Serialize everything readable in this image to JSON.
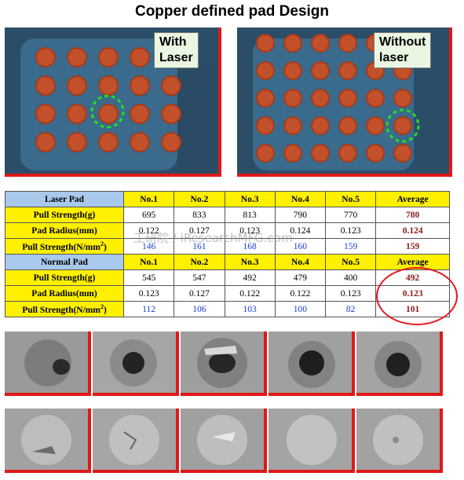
{
  "title": "Copper defined pad Design",
  "photos": {
    "left_callout": [
      "With",
      "Laser"
    ],
    "right_callout": [
      "Without",
      "laser"
    ]
  },
  "laser_table": {
    "header": [
      "Laser Pad",
      "No.1",
      "No.2",
      "No.3",
      "No.4",
      "No.5",
      "Average"
    ],
    "rows": [
      {
        "label": "Pull Strength(g)",
        "values": [
          "695",
          "833",
          "813",
          "790",
          "770"
        ],
        "average": "780"
      },
      {
        "label": "Pad Radius(mm)",
        "values": [
          "0.122",
          "0.127",
          "0.123",
          "0.124",
          "0.123"
        ],
        "average": "0.124"
      },
      {
        "label": "Pull Strength(N/mm",
        "label_sup": "2",
        "label_end": ")",
        "values": [
          "146",
          "161",
          "168",
          "160",
          "159"
        ],
        "average": "159"
      }
    ]
  },
  "normal_table": {
    "header": [
      "Normal Pad",
      "No.1",
      "No.2",
      "No.3",
      "No.4",
      "No.5",
      "Average"
    ],
    "rows": [
      {
        "label": "Pull Strength(g)",
        "values": [
          "545",
          "547",
          "492",
          "479",
          "400"
        ],
        "average": "492"
      },
      {
        "label": "Pad Radius(mm)",
        "values": [
          "0.123",
          "0.127",
          "0.122",
          "0.122",
          "0.123"
        ],
        "average": "0.123"
      },
      {
        "label": "Pull Strength(N/mm",
        "label_sup": "2",
        "label_end": ")",
        "values": [
          "112",
          "106",
          "103",
          "100",
          "82"
        ],
        "average": "101"
      }
    ]
  },
  "watermark": "工研院 / iResearchMFG.com"
}
